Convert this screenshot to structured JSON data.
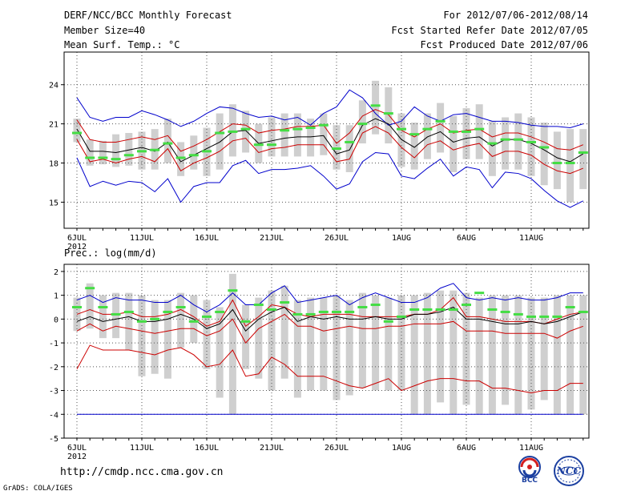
{
  "header": {
    "title": "DERF/NCC/BCC Monthly Forecast",
    "member": "Member Size=40",
    "variable": "Mean Surf. Temp.: °C",
    "period": "For 2012/07/06-2012/08/14",
    "refer": "Fcst Started Refer Date 2012/07/05",
    "produced": "Fcst Produced Date 2012/07/06"
  },
  "footer": {
    "url": "http://cmdp.ncc.cma.gov.cn",
    "credit": "GrADS: COLA/IGES",
    "logo1_text": "BCC",
    "logo2_text": "NCC"
  },
  "chart_data": [
    {
      "type": "line",
      "title": "Mean Surf. Temp.: °C",
      "x_tick_labels": [
        "6JUL",
        "11JUL",
        "16JUL",
        "21JUL",
        "26JUL",
        "1AUG",
        "6AUG",
        "11AUG"
      ],
      "year_label": "2012",
      "y_ticks": [
        15,
        18,
        21,
        24
      ],
      "ylim": [
        13.0,
        26.5
      ],
      "series": [
        {
          "name": "max",
          "color": "#0000cc",
          "values": [
            23.0,
            21.5,
            21.2,
            21.5,
            21.5,
            22.0,
            21.7,
            21.3,
            20.8,
            21.2,
            21.8,
            22.3,
            22.2,
            21.8,
            21.5,
            21.6,
            21.3,
            21.5,
            20.9,
            21.8,
            22.3,
            23.6,
            23.0,
            21.8,
            20.9,
            21.2,
            22.3,
            21.6,
            21.2,
            21.7,
            21.8,
            21.5,
            21.2,
            21.2,
            21.1,
            20.9,
            20.8,
            20.8,
            20.7,
            21.0
          ]
        },
        {
          "name": "upper",
          "color": "#cc0000",
          "values": [
            21.3,
            19.8,
            19.6,
            19.6,
            19.8,
            20.0,
            19.8,
            20.1,
            18.9,
            19.3,
            19.8,
            20.4,
            21.0,
            20.9,
            20.3,
            20.5,
            20.6,
            20.8,
            20.8,
            20.9,
            19.5,
            20.3,
            21.6,
            22.1,
            21.7,
            20.5,
            20.0,
            20.6,
            21.0,
            20.3,
            20.5,
            20.6,
            20.0,
            20.3,
            20.3,
            20.0,
            19.6,
            19.1,
            19.0,
            19.4
          ]
        },
        {
          "name": "mean",
          "color": "#000000",
          "values": [
            20.6,
            18.9,
            18.9,
            18.8,
            19.0,
            19.2,
            18.9,
            19.6,
            18.1,
            18.6,
            19.1,
            19.6,
            20.4,
            20.5,
            19.5,
            19.7,
            19.9,
            20.0,
            20.0,
            20.1,
            18.7,
            19.0,
            20.9,
            21.4,
            21.0,
            19.8,
            19.2,
            20.0,
            20.4,
            19.6,
            19.9,
            20.0,
            19.3,
            19.8,
            19.8,
            19.5,
            19.0,
            18.4,
            18.1,
            18.7
          ]
        },
        {
          "name": "lower",
          "color": "#cc0000",
          "values": [
            19.8,
            18.1,
            18.3,
            18.0,
            18.3,
            18.5,
            18.1,
            19.1,
            17.4,
            18.0,
            18.4,
            18.9,
            19.7,
            19.9,
            18.8,
            19.1,
            19.2,
            19.4,
            19.4,
            19.4,
            18.1,
            18.3,
            20.3,
            20.8,
            20.3,
            19.2,
            18.4,
            19.4,
            19.7,
            19.0,
            19.3,
            19.5,
            18.5,
            18.9,
            18.9,
            18.6,
            17.9,
            17.4,
            17.2,
            17.6
          ]
        },
        {
          "name": "min",
          "color": "#0000cc",
          "values": [
            18.4,
            16.2,
            16.6,
            16.3,
            16.6,
            16.5,
            15.8,
            16.8,
            15.0,
            16.2,
            16.5,
            16.5,
            17.8,
            18.2,
            17.2,
            17.5,
            17.5,
            17.6,
            17.8,
            17.0,
            16.0,
            16.4,
            18.1,
            18.8,
            18.7,
            17.0,
            16.8,
            17.6,
            18.3,
            17.0,
            17.7,
            17.5,
            16.1,
            17.3,
            17.2,
            16.8,
            15.9,
            15.1,
            14.6,
            15.1
          ]
        }
      ],
      "bars": [
        {
          "low": 19.6,
          "high": 21.4
        },
        {
          "low": 17.8,
          "high": 19.8
        },
        {
          "low": 17.9,
          "high": 19.7
        },
        {
          "low": 17.7,
          "high": 20.2
        },
        {
          "low": 17.8,
          "high": 20.3
        },
        {
          "low": 17.5,
          "high": 20.4
        },
        {
          "low": 17.5,
          "high": 20.6
        },
        {
          "low": 18.0,
          "high": 21.4
        },
        {
          "low": 17.0,
          "high": 19.6
        },
        {
          "low": 17.5,
          "high": 20.1
        },
        {
          "low": 17.0,
          "high": 20.7
        },
        {
          "low": 17.5,
          "high": 21.8
        },
        {
          "low": 18.5,
          "high": 22.5
        },
        {
          "low": 18.8,
          "high": 22.0
        },
        {
          "low": 18.0,
          "high": 21.0
        },
        {
          "low": 18.5,
          "high": 21.5
        },
        {
          "low": 18.5,
          "high": 21.8
        },
        {
          "low": 18.5,
          "high": 21.8
        },
        {
          "low": 18.5,
          "high": 21.4
        },
        {
          "low": 18.6,
          "high": 21.8
        },
        {
          "low": 17.5,
          "high": 20.9
        },
        {
          "low": 17.3,
          "high": 20.9
        },
        {
          "low": 19.5,
          "high": 22.8
        },
        {
          "low": 20.2,
          "high": 24.3
        },
        {
          "low": 19.5,
          "high": 23.8
        },
        {
          "low": 17.7,
          "high": 21.8
        },
        {
          "low": 17.5,
          "high": 21.1
        },
        {
          "low": 18.3,
          "high": 21.8
        },
        {
          "low": 18.8,
          "high": 22.6
        },
        {
          "low": 17.3,
          "high": 21.6
        },
        {
          "low": 18.3,
          "high": 22.2
        },
        {
          "low": 18.3,
          "high": 22.5
        },
        {
          "low": 17.0,
          "high": 21.2
        },
        {
          "low": 17.5,
          "high": 21.5
        },
        {
          "low": 17.5,
          "high": 21.8
        },
        {
          "low": 17.0,
          "high": 21.5
        },
        {
          "low": 16.3,
          "high": 21.1
        },
        {
          "low": 16.0,
          "high": 20.4
        },
        {
          "low": 15.0,
          "high": 20.6
        },
        {
          "low": 16.0,
          "high": 20.6
        }
      ],
      "markers": [
        20.3,
        18.4,
        18.4,
        18.3,
        18.6,
        18.9,
        19.0,
        19.5,
        18.4,
        18.6,
        18.9,
        20.3,
        20.4,
        20.6,
        19.4,
        19.4,
        20.5,
        20.6,
        20.7,
        20.9,
        19.1,
        19.6,
        21.0,
        22.4,
        21.8,
        20.6,
        20.2,
        20.6,
        21.2,
        20.4,
        20.4,
        20.6,
        19.5,
        19.8,
        19.8,
        19.6,
        19.2,
        18.0,
        18.0,
        18.8
      ]
    },
    {
      "type": "line",
      "title": "Prec.: log(mm/d)",
      "x_tick_labels": [
        "6JUL",
        "11JUL",
        "16JUL",
        "21JUL",
        "26JUL",
        "1AUG",
        "6AUG",
        "11AUG"
      ],
      "year_label": "2012",
      "y_ticks": [
        -5,
        -4,
        -3,
        -2,
        -1,
        0,
        1,
        2
      ],
      "ylim": [
        -5,
        2.3
      ],
      "series": [
        {
          "name": "max",
          "color": "#0000cc",
          "values": [
            0.8,
            1.0,
            0.7,
            0.9,
            0.8,
            0.8,
            0.7,
            0.7,
            1.0,
            0.6,
            0.3,
            0.6,
            1.1,
            0.6,
            0.6,
            1.1,
            1.4,
            0.7,
            0.8,
            0.9,
            1.0,
            0.6,
            0.9,
            1.1,
            0.9,
            0.7,
            0.7,
            0.9,
            1.3,
            1.5,
            0.9,
            0.8,
            0.9,
            0.8,
            0.9,
            0.8,
            0.8,
            0.9,
            1.1,
            1.1
          ]
        },
        {
          "name": "upper",
          "color": "#cc0000",
          "values": [
            0.2,
            0.4,
            0.2,
            0.2,
            0.3,
            0.1,
            0.1,
            0.2,
            0.4,
            0.1,
            -0.3,
            -0.1,
            0.8,
            -0.3,
            0.1,
            0.6,
            0.5,
            0.2,
            0.1,
            0.2,
            0.2,
            0.2,
            0.1,
            0.1,
            0.1,
            0.1,
            0.2,
            0.2,
            0.4,
            0.9,
            0.1,
            0.1,
            0.0,
            -0.1,
            -0.1,
            -0.1,
            -0.2,
            0.0,
            0.2,
            0.3
          ]
        },
        {
          "name": "mean",
          "color": "#000000",
          "values": [
            -0.1,
            0.1,
            -0.1,
            0.0,
            0.1,
            -0.1,
            -0.1,
            0.0,
            0.2,
            0.0,
            -0.4,
            -0.2,
            0.4,
            -0.5,
            0.0,
            0.3,
            0.5,
            -0.1,
            0.1,
            0.0,
            0.1,
            0.0,
            0.0,
            0.1,
            0.0,
            0.0,
            0.2,
            0.2,
            0.3,
            0.5,
            0.0,
            0.0,
            -0.1,
            -0.2,
            -0.2,
            -0.1,
            -0.2,
            -0.1,
            0.1,
            0.3
          ]
        },
        {
          "name": "lower",
          "color": "#cc0000",
          "values": [
            -0.5,
            -0.2,
            -0.5,
            -0.3,
            -0.4,
            -0.5,
            -0.6,
            -0.5,
            -0.4,
            -0.4,
            -0.7,
            -0.5,
            0.0,
            -1.0,
            -0.4,
            -0.1,
            0.2,
            -0.3,
            -0.3,
            -0.5,
            -0.4,
            -0.3,
            -0.4,
            -0.4,
            -0.3,
            -0.3,
            -0.2,
            -0.2,
            -0.2,
            -0.1,
            -0.5,
            -0.5,
            -0.5,
            -0.6,
            -0.6,
            -0.6,
            -0.6,
            -0.8,
            -0.5,
            -0.3
          ]
        },
        {
          "name": "min",
          "color": "#cc0000",
          "values": [
            -2.1,
            -1.1,
            -1.3,
            -1.3,
            -1.3,
            -1.4,
            -1.5,
            -1.3,
            -1.2,
            -1.5,
            -2.0,
            -1.9,
            -1.3,
            -2.4,
            -2.3,
            -1.6,
            -1.9,
            -2.4,
            -2.4,
            -2.4,
            -2.6,
            -2.8,
            -2.9,
            -2.7,
            -2.5,
            -3.0,
            -2.8,
            -2.6,
            -2.5,
            -2.5,
            -2.6,
            -2.6,
            -2.9,
            -2.9,
            -3.0,
            -3.1,
            -3.0,
            -3.0,
            -2.7,
            -2.7
          ]
        },
        {
          "name": "floor",
          "color": "#0000cc",
          "values": [
            -4,
            -4,
            -4,
            -4,
            -4,
            -4,
            -4,
            -4,
            -4,
            -4,
            -4,
            -4,
            -4,
            -4,
            -4,
            -4,
            -4,
            -4,
            -4,
            -4,
            -4,
            -4,
            -4,
            -4,
            -4,
            -4,
            -4,
            -4,
            -4,
            -4,
            -4,
            -4,
            -4,
            -4,
            -4,
            -4,
            -4,
            -4,
            -4,
            -4
          ]
        }
      ],
      "bars": [
        {
          "low": -0.5,
          "high": 0.9
        },
        {
          "low": -0.4,
          "high": 1.5
        },
        {
          "low": -0.8,
          "high": 1.0
        },
        {
          "low": -0.8,
          "high": 1.1
        },
        {
          "low": -1.3,
          "high": 1.1
        },
        {
          "low": -2.4,
          "high": 1.0
        },
        {
          "low": -2.3,
          "high": 0.8
        },
        {
          "low": -2.5,
          "high": 0.8
        },
        {
          "low": -1.2,
          "high": 1.1
        },
        {
          "low": -1.0,
          "high": 1.0
        },
        {
          "low": -2.1,
          "high": 0.8
        },
        {
          "low": -3.3,
          "high": 0.5
        },
        {
          "low": -4.0,
          "high": 1.9
        },
        {
          "low": -2.1,
          "high": 0.6
        },
        {
          "low": -2.5,
          "high": 0.9
        },
        {
          "low": -3.0,
          "high": 1.2
        },
        {
          "low": -2.5,
          "high": 1.4
        },
        {
          "low": -3.3,
          "high": 0.8
        },
        {
          "low": -3.0,
          "high": 0.9
        },
        {
          "low": -3.0,
          "high": 0.9
        },
        {
          "low": -3.4,
          "high": 1.0
        },
        {
          "low": -3.2,
          "high": 0.8
        },
        {
          "low": -2.9,
          "high": 1.1
        },
        {
          "low": -3.0,
          "high": 1.0
        },
        {
          "low": -3.0,
          "high": 0.9
        },
        {
          "low": -3.0,
          "high": 1.0
        },
        {
          "low": -4.0,
          "high": 1.0
        },
        {
          "low": -4.0,
          "high": 1.1
        },
        {
          "low": -3.5,
          "high": 1.2
        },
        {
          "low": -4.0,
          "high": 1.2
        },
        {
          "low": -3.6,
          "high": 1.1
        },
        {
          "low": -4.0,
          "high": 0.9
        },
        {
          "low": -4.0,
          "high": 1.0
        },
        {
          "low": -3.6,
          "high": 1.0
        },
        {
          "low": -4.0,
          "high": 1.0
        },
        {
          "low": -3.8,
          "high": 0.9
        },
        {
          "low": -3.4,
          "high": 0.9
        },
        {
          "low": -4.0,
          "high": 1.0
        },
        {
          "low": -4.0,
          "high": 1.0
        },
        {
          "low": -4.0,
          "high": 1.0
        }
      ],
      "markers": [
        0.5,
        1.3,
        0.5,
        0.2,
        0.3,
        -0.1,
        0.0,
        0.3,
        0.5,
        -0.1,
        0.1,
        0.3,
        1.2,
        -0.1,
        0.6,
        0.4,
        0.7,
        0.2,
        0.2,
        0.3,
        0.3,
        0.3,
        0.5,
        0.6,
        -0.1,
        0.1,
        0.4,
        0.4,
        0.4,
        0.4,
        0.6,
        1.1,
        0.4,
        0.3,
        0.2,
        0.1,
        0.1,
        0.1,
        0.5,
        0.3
      ]
    }
  ]
}
